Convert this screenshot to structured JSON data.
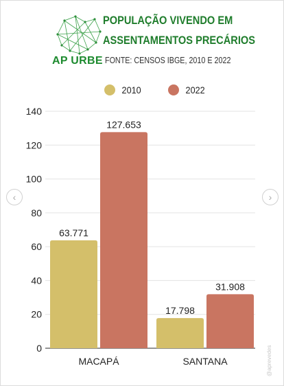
{
  "header": {
    "brand": "AP URBE",
    "title_line1": "POPULAÇÃO VIVENDO EM",
    "title_line2": "ASSENTAMENTOS PRECÁRIOS",
    "source": "FONTE: CENSOS IBGE, 2010 E 2022",
    "logo_icon": "map-wireframe-icon"
  },
  "navigation": {
    "prev_icon": "chevron-left-icon",
    "next_icon": "chevron-right-icon",
    "prev_glyph": "‹",
    "next_glyph": "›"
  },
  "watermark": "@aprevedes",
  "colors": {
    "series_2010": "#d4bf6a",
    "series_2022": "#c97561",
    "brand_green": "#1f7d2c"
  },
  "chart_data": {
    "type": "bar",
    "categories": [
      "MACAPÁ",
      "SANTANA"
    ],
    "series": [
      {
        "name": "2010",
        "values": [
          63.771,
          17.798
        ],
        "labels": [
          "63.771",
          "17.798"
        ],
        "color": "#d4bf6a"
      },
      {
        "name": "2022",
        "values": [
          127.653,
          31.908
        ],
        "labels": [
          "127.653",
          "31.908"
        ],
        "color": "#c97561"
      }
    ],
    "yticks": [
      0,
      20,
      40,
      60,
      80,
      100,
      120,
      140
    ],
    "ylim": [
      0,
      140
    ],
    "grid": true,
    "legend_position": "top"
  }
}
